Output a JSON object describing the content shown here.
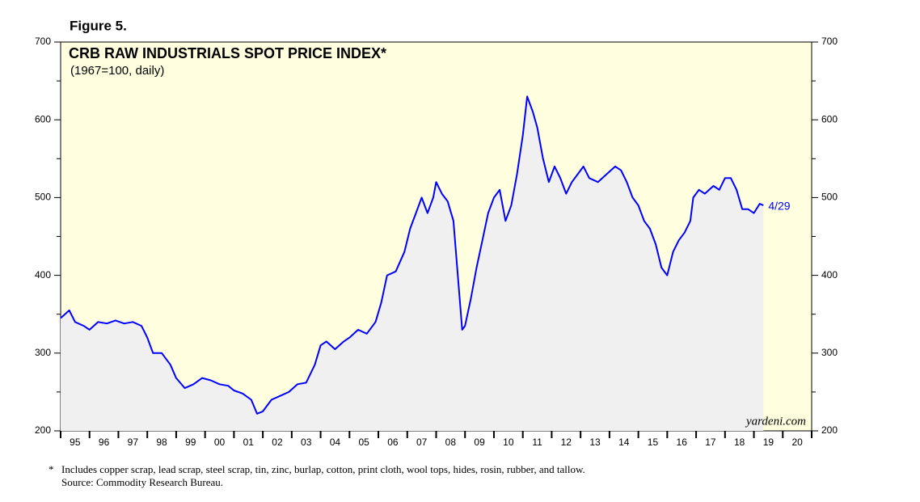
{
  "chart_data": {
    "type": "line",
    "figure_label": "Figure 5.",
    "title": "CRB RAW INDUSTRIALS SPOT PRICE INDEX*",
    "subtitle": "(1967=100, daily)",
    "footnote": "Includes copper scrap, lead scrap, steel scrap, tin, zinc, burlap, cotton, print cloth, wool tops, hides, rosin, rubber, and tallow.",
    "footnote_marker": "*",
    "source": "Source: Commodity Research Bureau.",
    "watermark": "yardeni.com",
    "end_label": "4/29",
    "background_color": "#ffffe0",
    "area_color": "#f0f0f0",
    "xlim": [
      1995,
      2021
    ],
    "xtick_marks": [
      1995,
      1996,
      1997,
      1998,
      1999,
      2000,
      2001,
      2002,
      2003,
      2004,
      2005,
      2006,
      2007,
      2008,
      2009,
      2010,
      2011,
      2012,
      2013,
      2014,
      2015,
      2016,
      2017,
      2018,
      2019,
      2020,
      2021
    ],
    "xticks": [
      {
        "value": 1995.5,
        "label": "95"
      },
      {
        "value": 1996.5,
        "label": "96"
      },
      {
        "value": 1997.5,
        "label": "97"
      },
      {
        "value": 1998.5,
        "label": "98"
      },
      {
        "value": 1999.5,
        "label": "99"
      },
      {
        "value": 2000.5,
        "label": "00"
      },
      {
        "value": 2001.5,
        "label": "01"
      },
      {
        "value": 2002.5,
        "label": "02"
      },
      {
        "value": 2003.5,
        "label": "03"
      },
      {
        "value": 2004.5,
        "label": "04"
      },
      {
        "value": 2005.5,
        "label": "05"
      },
      {
        "value": 2006.5,
        "label": "06"
      },
      {
        "value": 2007.5,
        "label": "07"
      },
      {
        "value": 2008.5,
        "label": "08"
      },
      {
        "value": 2009.5,
        "label": "09"
      },
      {
        "value": 2010.5,
        "label": "10"
      },
      {
        "value": 2011.5,
        "label": "11"
      },
      {
        "value": 2012.5,
        "label": "12"
      },
      {
        "value": 2013.5,
        "label": "13"
      },
      {
        "value": 2014.5,
        "label": "14"
      },
      {
        "value": 2015.5,
        "label": "15"
      },
      {
        "value": 2016.5,
        "label": "16"
      },
      {
        "value": 2017.5,
        "label": "17"
      },
      {
        "value": 2018.5,
        "label": "18"
      },
      {
        "value": 2019.5,
        "label": "19"
      },
      {
        "value": 2020.5,
        "label": "20"
      }
    ],
    "ylim": [
      200,
      700
    ],
    "yticks": [
      200,
      300,
      400,
      500,
      600,
      700
    ],
    "yminor": [
      250,
      350,
      450,
      550,
      650
    ],
    "series": [
      {
        "color": "#0000ff",
        "x": [
          1995.0,
          1995.3,
          1995.5,
          1995.8,
          1996.0,
          1996.3,
          1996.6,
          1996.9,
          1997.2,
          1997.5,
          1997.8,
          1998.0,
          1998.2,
          1998.5,
          1998.8,
          1999.0,
          1999.3,
          1999.6,
          1999.9,
          2000.2,
          2000.5,
          2000.8,
          2001.0,
          2001.3,
          2001.6,
          2001.8,
          2002.0,
          2002.3,
          2002.6,
          2002.9,
          2003.2,
          2003.5,
          2003.8,
          2004.0,
          2004.2,
          2004.5,
          2004.8,
          2005.0,
          2005.3,
          2005.6,
          2005.9,
          2006.1,
          2006.3,
          2006.6,
          2006.9,
          2007.1,
          2007.3,
          2007.5,
          2007.7,
          2007.9,
          2008.0,
          2008.2,
          2008.4,
          2008.6,
          2008.75,
          2008.9,
          2009.0,
          2009.2,
          2009.4,
          2009.6,
          2009.8,
          2010.0,
          2010.2,
          2010.4,
          2010.6,
          2010.8,
          2011.0,
          2011.15,
          2011.35,
          2011.5,
          2011.7,
          2011.9,
          2012.1,
          2012.3,
          2012.5,
          2012.7,
          2012.9,
          2013.1,
          2013.3,
          2013.6,
          2013.9,
          2014.2,
          2014.4,
          2014.6,
          2014.8,
          2015.0,
          2015.2,
          2015.4,
          2015.6,
          2015.8,
          2016.0,
          2016.2,
          2016.4,
          2016.6,
          2016.8,
          2016.9,
          2017.1,
          2017.3,
          2017.6,
          2017.8,
          2018.0,
          2018.2,
          2018.4,
          2018.6,
          2018.8,
          2019.0,
          2019.2,
          2019.33
        ],
        "values": [
          345,
          355,
          340,
          335,
          330,
          340,
          338,
          342,
          338,
          340,
          335,
          320,
          300,
          300,
          285,
          268,
          255,
          260,
          268,
          265,
          260,
          258,
          252,
          248,
          240,
          222,
          225,
          240,
          245,
          250,
          260,
          262,
          285,
          310,
          315,
          305,
          315,
          320,
          330,
          325,
          340,
          365,
          400,
          405,
          430,
          460,
          480,
          500,
          480,
          500,
          520,
          505,
          495,
          470,
          400,
          330,
          335,
          370,
          410,
          445,
          480,
          500,
          510,
          470,
          490,
          530,
          580,
          630,
          610,
          590,
          550,
          520,
          540,
          525,
          505,
          520,
          530,
          540,
          525,
          520,
          530,
          540,
          535,
          520,
          500,
          490,
          470,
          460,
          440,
          410,
          400,
          430,
          445,
          455,
          470,
          500,
          510,
          505,
          515,
          510,
          525,
          525,
          510,
          485,
          485,
          480,
          492,
          490
        ]
      }
    ]
  }
}
